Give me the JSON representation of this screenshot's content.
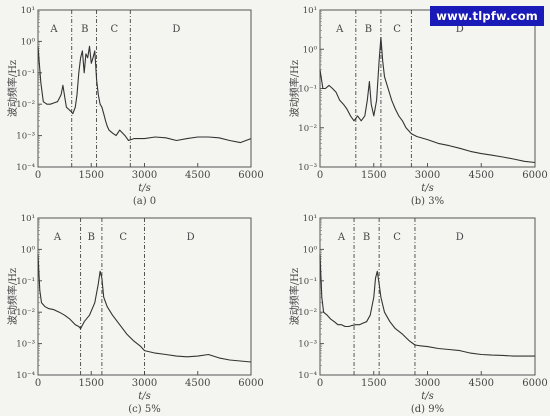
{
  "watermark": "www.tlpfw.com",
  "chart_data": [
    {
      "type": "line",
      "caption": "(a) 0",
      "xlabel": "t/s",
      "ylabel": "波动频率/Hz",
      "xlim": [
        0,
        6000
      ],
      "ylim_exp": [
        -4,
        1
      ],
      "y_scale": "log",
      "xticks": [
        0,
        1500,
        3000,
        4500,
        6000
      ],
      "yticks": [
        "10⁻⁴",
        "10⁻³",
        "10⁻²",
        "10⁻¹",
        "10⁰",
        "10¹"
      ],
      "dividers": [
        950,
        1650,
        2600
      ],
      "regions": [
        "A",
        "B",
        "C",
        "D"
      ],
      "region_x": [
        450,
        1320,
        2150,
        3900
      ],
      "series": [
        {
          "x": [
            0,
            80,
            150,
            250,
            350,
            450,
            550,
            650,
            700,
            760,
            800,
            860,
            920,
            980,
            1050,
            1100,
            1150,
            1200,
            1250,
            1300,
            1350,
            1400,
            1450,
            1500,
            1550,
            1600,
            1650,
            1700,
            1750,
            1800,
            1850,
            1900,
            1950,
            2000,
            2100,
            2200,
            2300,
            2450,
            2550,
            2700,
            3000,
            3300,
            3600,
            3900,
            4200,
            4500,
            4800,
            5100,
            5400,
            5700,
            6000
          ],
          "y": [
            0.7,
            0.05,
            0.012,
            0.01,
            0.01,
            0.011,
            0.012,
            0.02,
            0.04,
            0.015,
            0.008,
            0.007,
            0.006,
            0.005,
            0.008,
            0.02,
            0.1,
            0.3,
            0.5,
            0.1,
            0.4,
            0.3,
            0.7,
            0.2,
            0.3,
            0.5,
            0.06,
            0.02,
            0.01,
            0.008,
            0.005,
            0.003,
            0.002,
            0.0015,
            0.0012,
            0.001,
            0.0015,
            0.001,
            0.0007,
            0.0008,
            0.0008,
            0.0009,
            0.00085,
            0.0007,
            0.0008,
            0.0009,
            0.0009,
            0.00085,
            0.0007,
            0.0006,
            0.0008
          ]
        }
      ]
    },
    {
      "type": "line",
      "caption": "(b) 3%",
      "xlabel": "t/s",
      "ylabel": "波动频率/Hz",
      "xlim": [
        0,
        6000
      ],
      "ylim_exp": [
        -3,
        1
      ],
      "y_scale": "log",
      "xticks": [
        0,
        1500,
        3000,
        4500,
        6000
      ],
      "yticks": [
        "10⁻³",
        "10⁻²",
        "10⁻¹",
        "10⁰",
        "10¹"
      ],
      "dividers": [
        1000,
        1700,
        2550
      ],
      "regions": [
        "A",
        "B",
        "C",
        "D"
      ],
      "region_x": [
        550,
        1350,
        2150,
        3900
      ],
      "series": [
        {
          "x": [
            0,
            80,
            150,
            250,
            350,
            450,
            550,
            650,
            750,
            850,
            950,
            1050,
            1150,
            1250,
            1320,
            1380,
            1430,
            1500,
            1580,
            1650,
            1700,
            1750,
            1800,
            1900,
            2000,
            2100,
            2200,
            2300,
            2400,
            2550,
            2700,
            3000,
            3300,
            3600,
            3900,
            4200,
            4500,
            4800,
            5100,
            5400,
            5700,
            6000
          ],
          "y": [
            0.3,
            0.1,
            0.1,
            0.12,
            0.1,
            0.08,
            0.05,
            0.04,
            0.03,
            0.02,
            0.015,
            0.02,
            0.015,
            0.02,
            0.05,
            0.15,
            0.04,
            0.02,
            0.05,
            0.5,
            2.0,
            0.5,
            0.2,
            0.1,
            0.05,
            0.03,
            0.02,
            0.015,
            0.01,
            0.007,
            0.006,
            0.005,
            0.004,
            0.0035,
            0.003,
            0.0025,
            0.0022,
            0.002,
            0.0018,
            0.0016,
            0.0014,
            0.0013
          ]
        }
      ]
    },
    {
      "type": "line",
      "caption": "(c) 5%",
      "xlabel": "t/s",
      "ylabel": "波动频率/Hz",
      "xlim": [
        0,
        6000
      ],
      "ylim_exp": [
        -4,
        1
      ],
      "y_scale": "log",
      "xticks": [
        0,
        1500,
        3000,
        4500,
        6000
      ],
      "yticks": [
        "10⁻⁴",
        "10⁻³",
        "10⁻²",
        "10⁻¹",
        "10⁰",
        "10¹"
      ],
      "dividers": [
        1200,
        1800,
        3000
      ],
      "regions": [
        "A",
        "B",
        "C",
        "D"
      ],
      "region_x": [
        550,
        1500,
        2400,
        4300
      ],
      "series": [
        {
          "x": [
            0,
            50,
            100,
            200,
            300,
            450,
            600,
            750,
            900,
            1050,
            1150,
            1200,
            1300,
            1450,
            1600,
            1700,
            1750,
            1800,
            1850,
            1950,
            2100,
            2300,
            2500,
            2700,
            2900,
            3000,
            3300,
            3600,
            3900,
            4200,
            4500,
            4800,
            5100,
            5400,
            5700,
            6000
          ],
          "y": [
            0.7,
            0.05,
            0.02,
            0.015,
            0.013,
            0.012,
            0.01,
            0.008,
            0.006,
            0.004,
            0.0035,
            0.003,
            0.005,
            0.008,
            0.02,
            0.08,
            0.2,
            0.12,
            0.03,
            0.015,
            0.008,
            0.004,
            0.002,
            0.0012,
            0.0008,
            0.0006,
            0.0005,
            0.00045,
            0.0004,
            0.00038,
            0.0004,
            0.00045,
            0.00035,
            0.0003,
            0.00028,
            0.00026
          ]
        }
      ]
    },
    {
      "type": "line",
      "caption": "(d) 9%",
      "xlabel": "t/s",
      "ylabel": "波动频率/Hz",
      "xlim": [
        0,
        6000
      ],
      "ylim_exp": [
        -4,
        1
      ],
      "y_scale": "log",
      "xticks": [
        0,
        1500,
        3000,
        4500,
        6000
      ],
      "yticks": [
        "10⁻⁴",
        "10⁻³",
        "10⁻²",
        "10⁻¹",
        "10⁰",
        "10¹"
      ],
      "dividers": [
        950,
        1650,
        2650
      ],
      "regions": [
        "A",
        "B",
        "C",
        "D"
      ],
      "region_x": [
        600,
        1300,
        2150,
        3900
      ],
      "series": [
        {
          "x": [
            0,
            50,
            100,
            200,
            300,
            400,
            500,
            600,
            700,
            800,
            900,
            1000,
            1100,
            1200,
            1300,
            1400,
            1500,
            1550,
            1600,
            1650,
            1700,
            1800,
            1950,
            2100,
            2300,
            2500,
            2650,
            2800,
            3000,
            3300,
            3600,
            3900,
            4200,
            4500,
            4800,
            5100,
            5400,
            5700,
            6000
          ],
          "y": [
            0.7,
            0.03,
            0.01,
            0.008,
            0.006,
            0.005,
            0.004,
            0.004,
            0.0035,
            0.0035,
            0.0038,
            0.004,
            0.004,
            0.0045,
            0.005,
            0.008,
            0.03,
            0.12,
            0.2,
            0.08,
            0.03,
            0.01,
            0.005,
            0.003,
            0.002,
            0.0012,
            0.0009,
            0.00085,
            0.0008,
            0.0007,
            0.00065,
            0.0006,
            0.0005,
            0.00045,
            0.00043,
            0.00042,
            0.0004,
            0.0004,
            0.0004
          ]
        }
      ]
    }
  ]
}
